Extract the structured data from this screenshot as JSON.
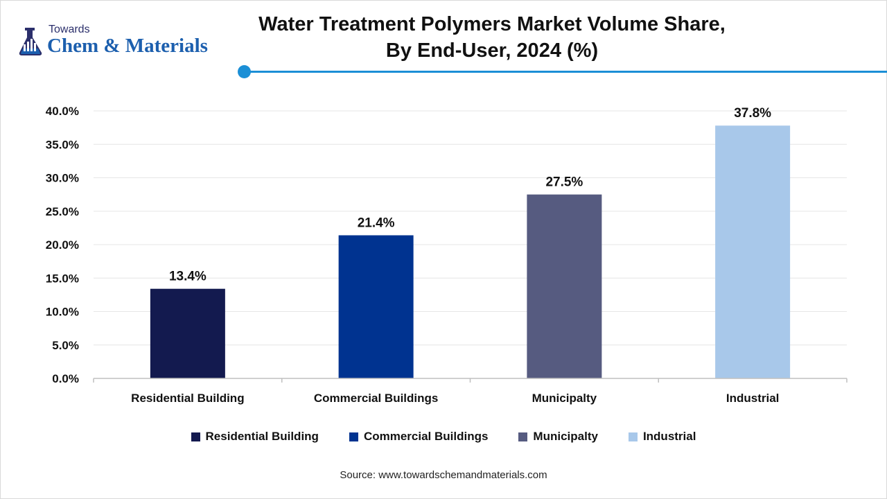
{
  "brand": {
    "small": "Towards",
    "big": "Chem & Materials",
    "color": "#1c5fae"
  },
  "header": {
    "title_line1": "Water Treatment Polymers Market Volume Share,",
    "title_line2": "By End-User, 2024 (%)",
    "accent_color": "#1b8fd6"
  },
  "chart_data": {
    "type": "bar",
    "title": "Water Treatment Polymers Market Volume Share, By End-User, 2024 (%)",
    "categories": [
      "Residential Building",
      "Commercial Buildings",
      "Municipalty",
      "Industrial"
    ],
    "values": [
      13.4,
      21.4,
      27.5,
      37.8
    ],
    "data_labels": [
      "13.4%",
      "21.4%",
      "27.5%",
      "37.8%"
    ],
    "colors": [
      "#131a4f",
      "#003390",
      "#565b80",
      "#a8c8ea"
    ],
    "ylim": [
      0,
      40
    ],
    "yticks": [
      0,
      5,
      10,
      15,
      20,
      25,
      30,
      35,
      40
    ],
    "ytick_labels": [
      "0.0%",
      "5.0%",
      "10.0%",
      "15.0%",
      "20.0%",
      "25.0%",
      "30.0%",
      "35.0%",
      "40.0%"
    ],
    "xlabel": "",
    "ylabel": "",
    "grid": true,
    "legend": {
      "placement": "bottom",
      "entries": [
        "Residential Building",
        "Commercial Buildings",
        "Municipalty",
        "Industrial"
      ]
    }
  },
  "footer": {
    "source": "Source: www.towardschemandmaterials.com"
  }
}
